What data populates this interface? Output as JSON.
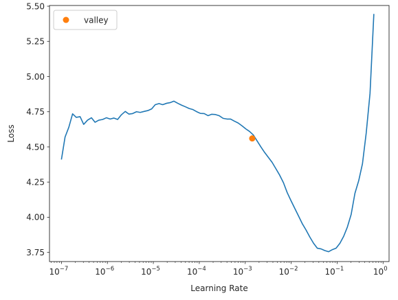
{
  "chart_data": {
    "type": "line",
    "xscale": "log",
    "xlabel": "Learning Rate",
    "ylabel": "Loss",
    "xlim": [
      5.5e-08,
      1.35
    ],
    "ylim": [
      3.685,
      5.505
    ],
    "x_ticks": [
      {
        "value": 1e-07,
        "base": "10",
        "exp": "−7"
      },
      {
        "value": 1e-06,
        "base": "10",
        "exp": "−6"
      },
      {
        "value": 1e-05,
        "base": "10",
        "exp": "−5"
      },
      {
        "value": 0.0001,
        "base": "10",
        "exp": "−4"
      },
      {
        "value": 0.001,
        "base": "10",
        "exp": "−3"
      },
      {
        "value": 0.01,
        "base": "10",
        "exp": "−2"
      },
      {
        "value": 0.1,
        "base": "10",
        "exp": "−1"
      },
      {
        "value": 1,
        "base": "10",
        "exp": "0"
      }
    ],
    "y_ticks": [
      "3.75",
      "4.00",
      "4.25",
      "4.50",
      "4.75",
      "5.00",
      "5.25",
      "5.50"
    ],
    "grid": false,
    "legend_position": "top-left",
    "colors": {
      "line": "#1f77b4",
      "marker": "#ff7f0e"
    },
    "series": [
      {
        "kind": "line",
        "points": [
          [
            1e-07,
            4.41
          ],
          [
            1.2e-07,
            4.57
          ],
          [
            1.45e-07,
            4.64
          ],
          [
            1.75e-07,
            4.735
          ],
          [
            2.1e-07,
            4.71
          ],
          [
            2.55e-07,
            4.715
          ],
          [
            3.05e-07,
            4.66
          ],
          [
            3.7e-07,
            4.69
          ],
          [
            4.5e-07,
            4.707
          ],
          [
            5.4e-07,
            4.675
          ],
          [
            6.5e-07,
            4.69
          ],
          [
            7.9e-07,
            4.695
          ],
          [
            9.5e-07,
            4.707
          ],
          [
            1.15e-06,
            4.698
          ],
          [
            1.39e-06,
            4.705
          ],
          [
            1.67e-06,
            4.695
          ],
          [
            2e-06,
            4.727
          ],
          [
            2.45e-06,
            4.752
          ],
          [
            2.95e-06,
            4.733
          ],
          [
            3.55e-06,
            4.737
          ],
          [
            4.3e-06,
            4.75
          ],
          [
            5.2e-06,
            4.745
          ],
          [
            6.3e-06,
            4.752
          ],
          [
            7.6e-06,
            4.758
          ],
          [
            9.2e-06,
            4.77
          ],
          [
            1.1e-05,
            4.8
          ],
          [
            1.33e-05,
            4.808
          ],
          [
            1.6e-05,
            4.8
          ],
          [
            1.95e-05,
            4.81
          ],
          [
            2.35e-05,
            4.815
          ],
          [
            2.8e-05,
            4.825
          ],
          [
            3.4e-05,
            4.81
          ],
          [
            4.1e-05,
            4.797
          ],
          [
            5e-05,
            4.785
          ],
          [
            6e-05,
            4.773
          ],
          [
            7.3e-05,
            4.765
          ],
          [
            8.8e-05,
            4.75
          ],
          [
            0.000106,
            4.738
          ],
          [
            0.000128,
            4.737
          ],
          [
            0.000155,
            4.722
          ],
          [
            0.000187,
            4.732
          ],
          [
            0.000225,
            4.73
          ],
          [
            0.00027,
            4.722
          ],
          [
            0.00033,
            4.703
          ],
          [
            0.0004,
            4.698
          ],
          [
            0.00048,
            4.698
          ],
          [
            0.00058,
            4.683
          ],
          [
            0.0007,
            4.67
          ],
          [
            0.00085,
            4.65
          ],
          [
            0.00103,
            4.628
          ],
          [
            0.00124,
            4.61
          ],
          [
            0.0015,
            4.585
          ],
          [
            0.00181,
            4.543
          ],
          [
            0.00219,
            4.5
          ],
          [
            0.00265,
            4.46
          ],
          [
            0.0032,
            4.425
          ],
          [
            0.00385,
            4.39
          ],
          [
            0.00465,
            4.345
          ],
          [
            0.0056,
            4.3
          ],
          [
            0.0068,
            4.245
          ],
          [
            0.0082,
            4.175
          ],
          [
            0.0099,
            4.118
          ],
          [
            0.0119,
            4.065
          ],
          [
            0.0144,
            4.01
          ],
          [
            0.0174,
            3.955
          ],
          [
            0.021,
            3.91
          ],
          [
            0.0254,
            3.86
          ],
          [
            0.0307,
            3.815
          ],
          [
            0.037,
            3.78
          ],
          [
            0.0447,
            3.775
          ],
          [
            0.054,
            3.763
          ],
          [
            0.065,
            3.755
          ],
          [
            0.079,
            3.77
          ],
          [
            0.095,
            3.78
          ],
          [
            0.115,
            3.815
          ],
          [
            0.139,
            3.865
          ],
          [
            0.167,
            3.93
          ],
          [
            0.202,
            4.02
          ],
          [
            0.244,
            4.17
          ],
          [
            0.295,
            4.26
          ],
          [
            0.356,
            4.38
          ],
          [
            0.43,
            4.6
          ],
          [
            0.52,
            4.88
          ],
          [
            0.63,
            5.445
          ]
        ]
      },
      {
        "kind": "marker",
        "name": "valley",
        "points": [
          [
            0.00142,
            4.56
          ]
        ]
      }
    ]
  }
}
